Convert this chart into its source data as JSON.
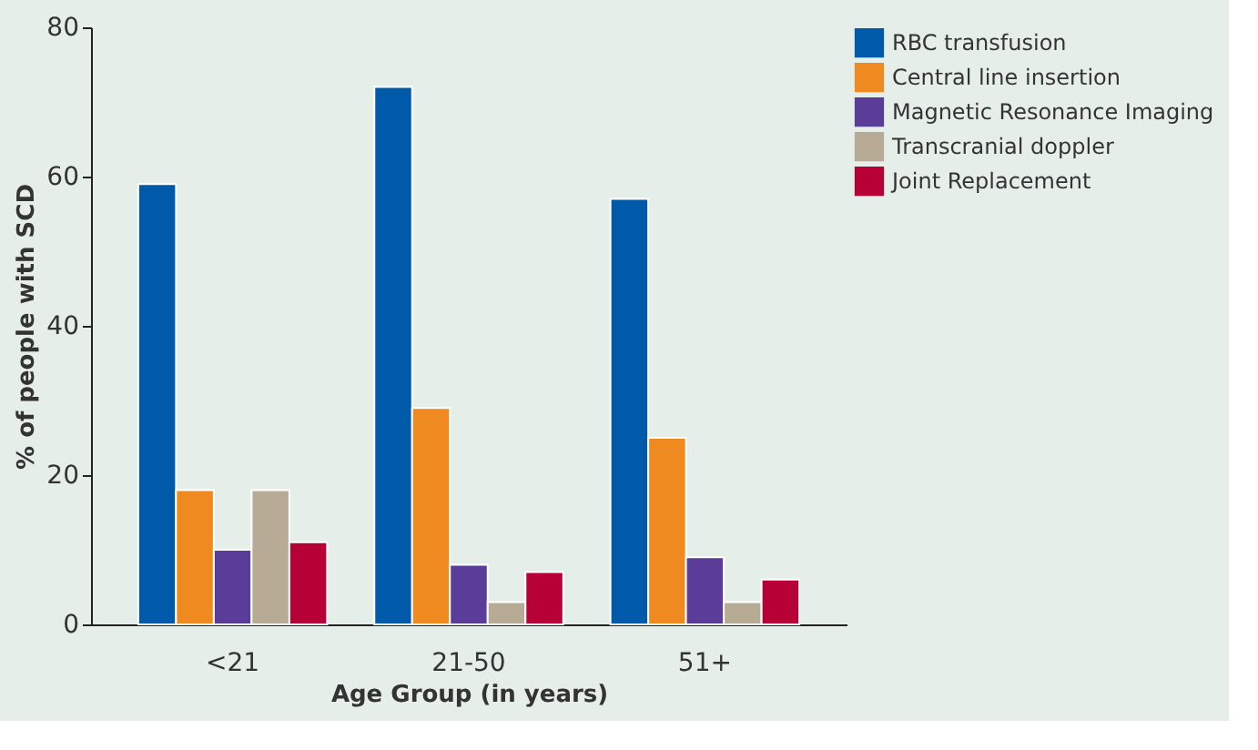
{
  "chart_data": {
    "type": "bar",
    "xlabel": "Age Group (in years)",
    "ylabel": "% of people with SCD",
    "categories": [
      "<21",
      "21-50",
      "51+"
    ],
    "series": [
      {
        "name": "RBC transfusion",
        "color": "#005aa9",
        "values": [
          59,
          72,
          57
        ]
      },
      {
        "name": "Central line insertion",
        "color": "#ee8a1f",
        "values": [
          18,
          29,
          25
        ]
      },
      {
        "name": "Magnetic Resonance Imaging",
        "color": "#5a3d98",
        "values": [
          10,
          8,
          9
        ]
      },
      {
        "name": "Transcranial doppler",
        "color": "#b8ab95",
        "values": [
          18,
          3,
          3
        ]
      },
      {
        "name": "Joint Replacement",
        "color": "#b70036",
        "values": [
          11,
          7,
          6
        ]
      }
    ],
    "ylim": [
      0,
      80
    ],
    "yticks": [
      0,
      20,
      40,
      60,
      80
    ],
    "grid": false,
    "legend": "top right"
  }
}
